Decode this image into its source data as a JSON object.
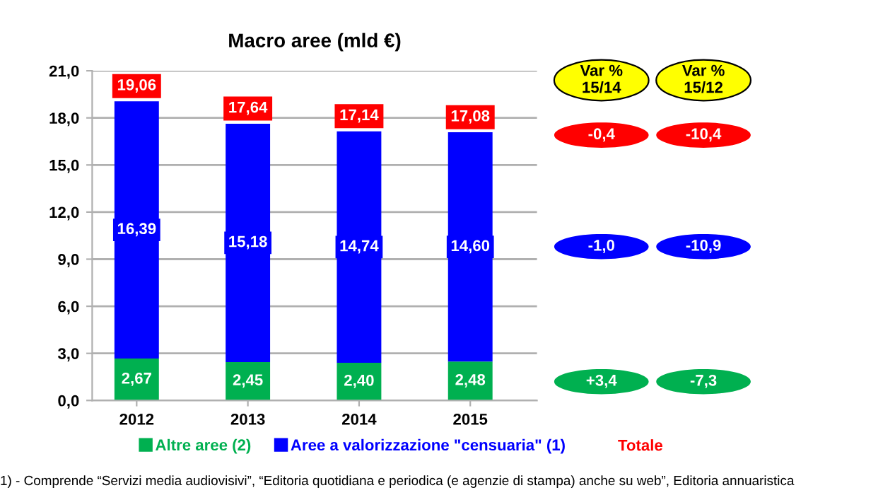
{
  "chart_data": {
    "type": "bar",
    "stacked": true,
    "title": "Macro aree (mld €)",
    "categories": [
      "2012",
      "2013",
      "2014",
      "2015"
    ],
    "series": [
      {
        "name": "Altre aree (2)",
        "color": "#00b050",
        "values": [
          2.67,
          2.45,
          2.4,
          2.48
        ],
        "value_labels": [
          "2,67",
          "2,45",
          "2,40",
          "2,48"
        ]
      },
      {
        "name": "Aree a valorizzazione \"censuaria\" (1)",
        "color": "#0000ff",
        "values": [
          16.39,
          15.18,
          14.74,
          14.6
        ],
        "value_labels": [
          "16,39",
          "15,18",
          "14,74",
          "14,60"
        ]
      }
    ],
    "totals": [
      "19,06",
      "17,64",
      "17,14",
      "17,08"
    ],
    "ylim": [
      0,
      21
    ],
    "yticks": [
      {
        "value": 0,
        "label": "0,0"
      },
      {
        "value": 3,
        "label": "3,0"
      },
      {
        "value": 6,
        "label": "6,0"
      },
      {
        "value": 9,
        "label": "9,0"
      },
      {
        "value": 12,
        "label": "12,0"
      },
      {
        "value": 15,
        "label": "15,0"
      },
      {
        "value": 18,
        "label": "18,0"
      },
      {
        "value": 21,
        "label": "21,0"
      }
    ],
    "grid": "y",
    "legend": "bottom",
    "annotations": [
      "Var %\n15/14",
      "Var %\n15/12",
      "-0,4",
      "-10,4",
      "-1,0",
      "-10,9",
      "+3,4",
      "-7,3",
      "Totale",
      "1) - Comprende “Servizi media audiovisivi”, “Editoria quotidiana e periodica (e agenzie di stampa) anche su web”, Editoria annuaristica"
    ]
  }
}
